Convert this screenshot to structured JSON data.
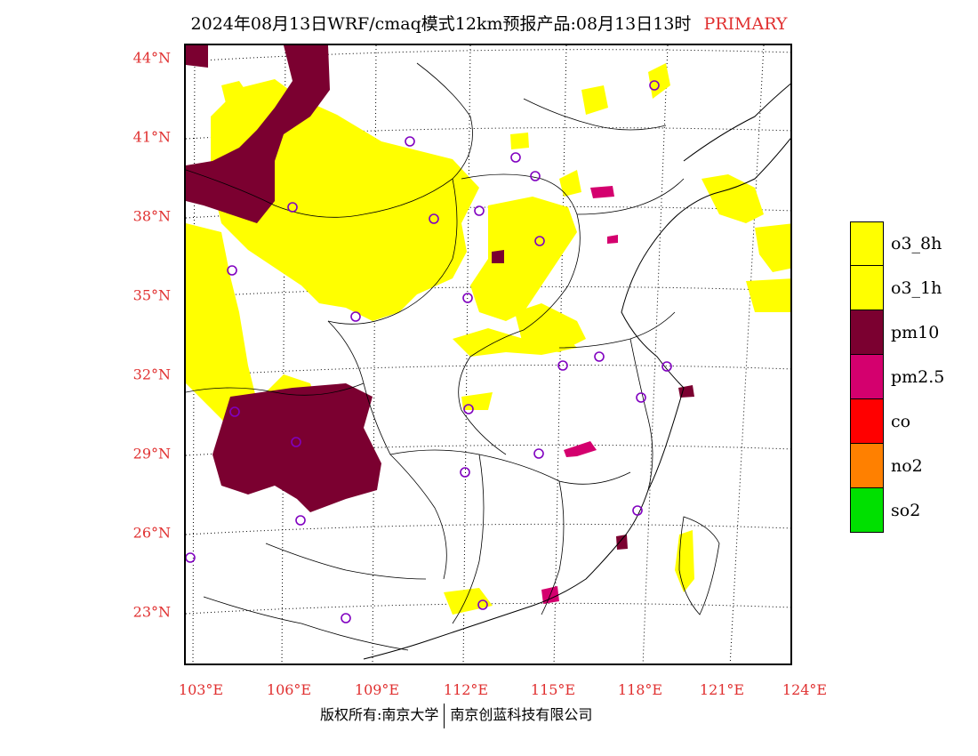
{
  "title": "2024年08月13日WRF/cmaq模式12km预报产品:08月13日13时",
  "title_tag": "PRIMARY",
  "lat_labels": [
    "44°N",
    "41°N",
    "38°N",
    "35°N",
    "32°N",
    "29°N",
    "26°N",
    "23°N"
  ],
  "lon_labels": [
    "103°E",
    "106°E",
    "109°E",
    "112°E",
    "115°E",
    "118°E",
    "121°E",
    "124°E"
  ],
  "legend": [
    {
      "label": "o3_8h",
      "color": "#ffff00"
    },
    {
      "label": "o3_1h",
      "color": "#ffff00"
    },
    {
      "label": "pm10",
      "color": "#7b0030"
    },
    {
      "label": "pm2.5",
      "color": "#d4006e"
    },
    {
      "label": "co",
      "color": "#ff0000"
    },
    {
      "label": "no2",
      "color": "#ff8000"
    },
    {
      "label": "so2",
      "color": "#00e000"
    }
  ],
  "footer": {
    "left": "版权所有:南京大学",
    "right": "南京创蓝科技有限公司"
  },
  "city_marker_color": "#8000c0"
}
